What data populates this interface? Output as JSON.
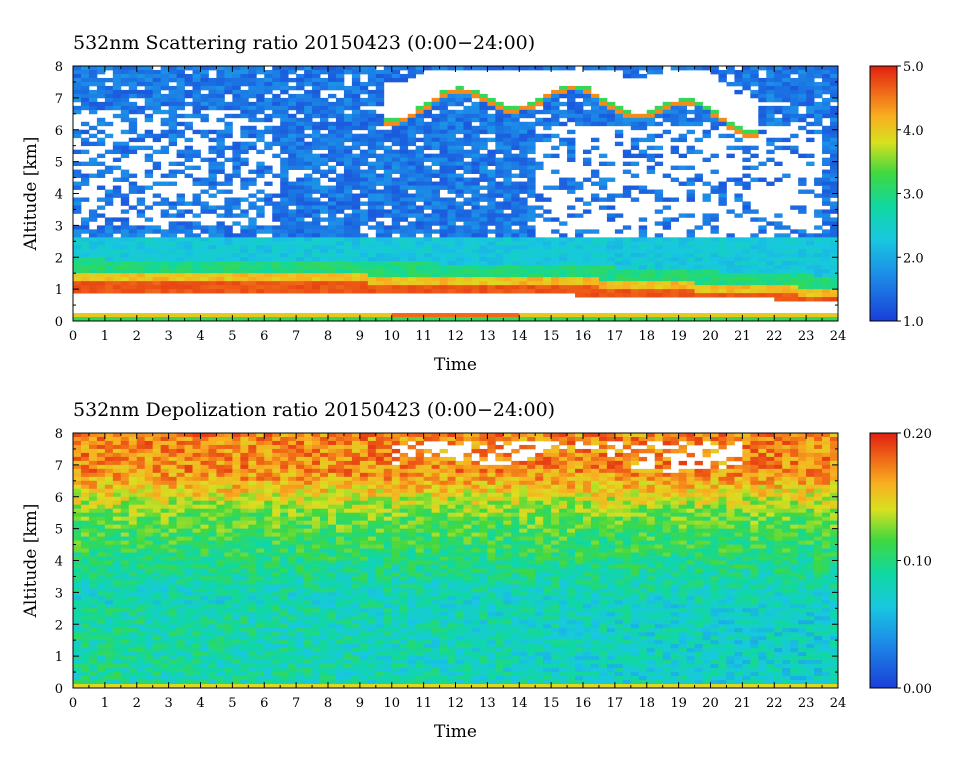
{
  "chart_data": [
    {
      "type": "heatmap",
      "title": "532nm Scattering ratio  20150423 (0:00−24:00)",
      "xlabel": "Time",
      "ylabel": "Altitude [km]",
      "xlim": [
        0,
        24
      ],
      "ylim": [
        0,
        8
      ],
      "x_ticks": [
        "0",
        "1",
        "2",
        "3",
        "4",
        "5",
        "6",
        "7",
        "8",
        "9",
        "10",
        "11",
        "12",
        "13",
        "14",
        "15",
        "16",
        "17",
        "18",
        "19",
        "20",
        "21",
        "22",
        "23",
        "24"
      ],
      "y_ticks": [
        "0",
        "1",
        "2",
        "3",
        "4",
        "5",
        "6",
        "7",
        "8"
      ],
      "colorbar": {
        "min": 1.0,
        "max": 5.0,
        "ticks": [
          "1.0",
          "2.0",
          "3.0",
          "4.0",
          "5.0"
        ]
      },
      "colors": {
        "low": "#1a3fd8",
        "mid": "#00e0a0",
        "high": "#e82010",
        "missing": "#ffffff"
      },
      "features": {
        "boundary_layer_top_km": 1.2,
        "cloud_base_km": [
          6.2,
          7.6
        ],
        "cloud_time_hr": [
          9.5,
          21.5
        ]
      }
    },
    {
      "type": "heatmap",
      "title": "532nm Depolization ratio  20150423 (0:00−24:00)",
      "xlabel": "Time",
      "ylabel": "Altitude [km]",
      "xlim": [
        0,
        24
      ],
      "ylim": [
        0,
        8
      ],
      "x_ticks": [
        "0",
        "1",
        "2",
        "3",
        "4",
        "5",
        "6",
        "7",
        "8",
        "9",
        "10",
        "11",
        "12",
        "13",
        "14",
        "15",
        "16",
        "17",
        "18",
        "19",
        "20",
        "21",
        "22",
        "23",
        "24"
      ],
      "y_ticks": [
        "0",
        "1",
        "2",
        "3",
        "4",
        "5",
        "6",
        "7",
        "8"
      ],
      "colorbar": {
        "min": 0.0,
        "max": 0.2,
        "ticks": [
          "0.00",
          "0.10",
          "0.20"
        ]
      },
      "colors": {
        "low": "#1a3fd8",
        "mid": "#30d860",
        "high": "#e82010",
        "missing": "#ffffff"
      }
    }
  ]
}
